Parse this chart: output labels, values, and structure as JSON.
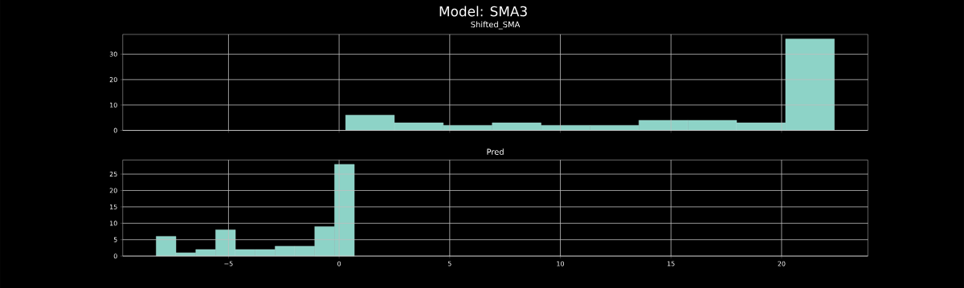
{
  "chart_data": [
    {
      "type": "histogram",
      "title": "Model: SMA3",
      "subtitle": "Shifted_SMA",
      "color": "#8dd3c7",
      "bins": [
        0.29,
        2.5,
        4.71,
        6.92,
        9.13,
        11.34,
        13.55,
        15.76,
        17.97,
        20.18,
        22.39
      ],
      "values": [
        6,
        3,
        2,
        3,
        2,
        2,
        4,
        4,
        3,
        36
      ],
      "xlim": [
        -9.78,
        23.9
      ],
      "ylim": [
        0,
        37.8
      ],
      "xticks": [
        -5,
        0,
        5,
        10,
        15,
        20
      ],
      "yticks": [
        0,
        10,
        20,
        30
      ],
      "grid": true,
      "tick_labels": "y"
    },
    {
      "type": "histogram",
      "title": "Pred",
      "color": "#8dd3c7",
      "bins": [
        -8.27,
        -7.374,
        -6.478,
        -5.582,
        -4.686,
        -3.79,
        -2.894,
        -1.998,
        -1.102,
        -0.206,
        0.69
      ],
      "values": [
        6,
        1,
        2,
        8,
        2,
        2,
        3,
        3,
        9,
        28
      ],
      "xlim": [
        -9.78,
        23.9
      ],
      "ylim": [
        0,
        29.3
      ],
      "xticks": [
        {
          "value": -5,
          "label": "−5"
        },
        0,
        5,
        10,
        15,
        20
      ],
      "yticks": [
        0,
        5,
        10,
        15,
        20,
        25
      ],
      "grid": true
    }
  ]
}
